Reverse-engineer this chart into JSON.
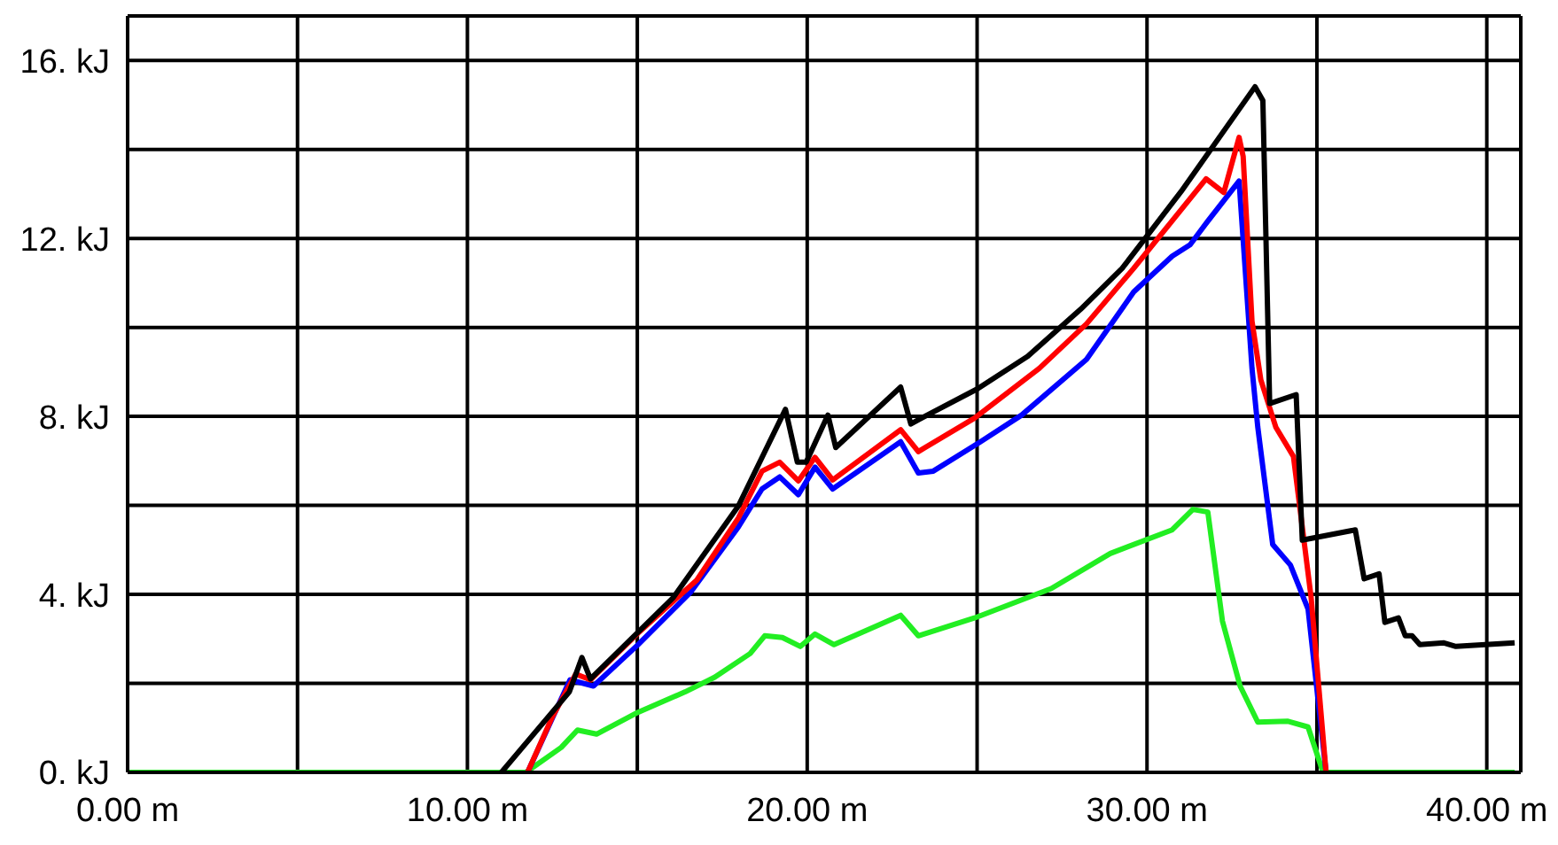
{
  "chart_data": {
    "type": "line",
    "xlim": [
      0,
      41
    ],
    "ylim": [
      0,
      17
    ],
    "xticks": [
      {
        "value": 0,
        "label": "0.00 m"
      },
      {
        "value": 5,
        "label": null
      },
      {
        "value": 10,
        "label": "10.00 m"
      },
      {
        "value": 15,
        "label": null
      },
      {
        "value": 20,
        "label": "20.00 m"
      },
      {
        "value": 25,
        "label": null
      },
      {
        "value": 30,
        "label": "30.00 m"
      },
      {
        "value": 35,
        "label": null
      },
      {
        "value": 40,
        "label": "40.00 m"
      }
    ],
    "yticks": [
      {
        "value": 0,
        "label": "0. kJ"
      },
      {
        "value": 2,
        "label": null
      },
      {
        "value": 4,
        "label": "4. kJ"
      },
      {
        "value": 6,
        "label": null
      },
      {
        "value": 8,
        "label": "8. kJ"
      },
      {
        "value": 10,
        "label": null
      },
      {
        "value": 12,
        "label": "12. kJ"
      },
      {
        "value": 14,
        "label": null
      },
      {
        "value": 16,
        "label": "16. kJ"
      }
    ],
    "grid": true,
    "marker": "none",
    "line_style": "solid",
    "series": [
      {
        "color": "#22ee22",
        "x": [
          0,
          11.72,
          12.76,
          13.24,
          13.8,
          15.02,
          16.41,
          17.28,
          18.32,
          18.75,
          19.27,
          19.8,
          20.23,
          20.79,
          22.75,
          23.27,
          24.92,
          27.18,
          28.92,
          30.74,
          31.35,
          31.79,
          32.22,
          32.74,
          33.26,
          34.13,
          34.74,
          35.18,
          40.82
        ],
        "values": [
          0,
          0,
          0.56,
          0.95,
          0.86,
          1.35,
          1.81,
          2.14,
          2.67,
          3.07,
          3.03,
          2.83,
          3.11,
          2.87,
          3.53,
          3.07,
          3.47,
          4.13,
          4.92,
          5.45,
          5.91,
          5.85,
          3.4,
          1.94,
          1.13,
          1.15,
          1.02,
          0,
          0
        ]
      },
      {
        "color": "#0000ff",
        "x": [
          11.77,
          12.5,
          13.02,
          13.71,
          15.02,
          16.58,
          17.97,
          18.67,
          19.19,
          19.74,
          20.23,
          20.75,
          22.75,
          23.27,
          23.71,
          25.1,
          26.31,
          28.22,
          29.61,
          30.74,
          31.27,
          31.79,
          32.71,
          33.09,
          33.26,
          33.7,
          34.22,
          34.74,
          35.27
        ],
        "values": [
          0,
          1.22,
          2.08,
          1.94,
          2.87,
          4.06,
          5.51,
          6.37,
          6.64,
          6.24,
          6.86,
          6.37,
          7.43,
          6.73,
          6.77,
          7.43,
          8.03,
          9.28,
          10.8,
          11.6,
          11.86,
          12.39,
          13.29,
          9.08,
          7.76,
          5.12,
          4.66,
          3.67,
          0
        ]
      },
      {
        "color": "#ff0000",
        "x": [
          11.77,
          12.5,
          13.19,
          13.62,
          15.02,
          16.75,
          17.97,
          18.67,
          19.19,
          19.74,
          20.23,
          20.75,
          22.75,
          23.27,
          24.92,
          26.83,
          28.22,
          29.61,
          30.66,
          31.74,
          32.26,
          32.71,
          32.83,
          33.09,
          33.35,
          33.79,
          34.31,
          34.83,
          35.27
        ],
        "values": [
          0,
          1.25,
          2.21,
          2.08,
          3.13,
          4.32,
          5.71,
          6.77,
          6.97,
          6.55,
          7.08,
          6.57,
          7.7,
          7.21,
          7.96,
          9.08,
          10.08,
          11.33,
          12.32,
          13.34,
          13.03,
          14.27,
          13.84,
          10.14,
          8.82,
          7.76,
          7.1,
          3.93,
          0
        ]
      },
      {
        "color": "#000000",
        "x": [
          11.0,
          13.0,
          13.37,
          13.62,
          16.06,
          17.97,
          19.36,
          19.71,
          19.97,
          20.61,
          20.84,
          22.75,
          23.05,
          23.36,
          25.01,
          26.49,
          28.05,
          29.27,
          31.0,
          33.18,
          33.41,
          33.61,
          34.39,
          34.57,
          36.13,
          36.39,
          36.83,
          37.0,
          37.4,
          37.6,
          37.8,
          38.03,
          38.74,
          39.09,
          40.82
        ],
        "values": [
          0,
          1.81,
          2.58,
          2.1,
          3.93,
          5.98,
          8.16,
          6.97,
          6.97,
          8.03,
          7.3,
          8.66,
          7.83,
          7.96,
          8.62,
          9.35,
          10.41,
          11.33,
          13.05,
          15.41,
          15.1,
          8.29,
          8.49,
          5.22,
          5.45,
          4.35,
          4.46,
          3.37,
          3.47,
          3.07,
          3.07,
          2.87,
          2.91,
          2.83,
          2.91
        ]
      }
    ]
  }
}
